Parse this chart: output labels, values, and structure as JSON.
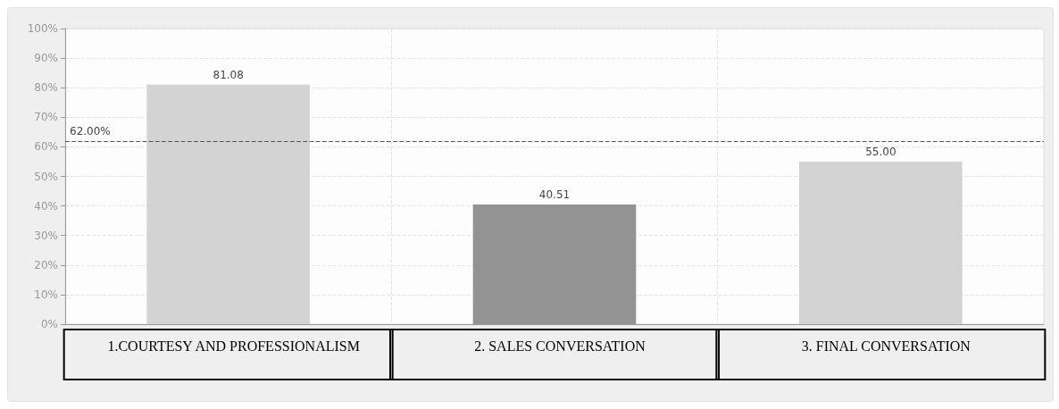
{
  "chart_data": {
    "type": "bar",
    "categories": [
      "1.COURTESY AND PROFESSIONALISM",
      "2. SALES CONVERSATION",
      "3. FINAL CONVERSATION"
    ],
    "values": [
      81.08,
      40.51,
      55.0
    ],
    "colors": [
      "#d3d3d3",
      "#939393",
      "#d3d3d3"
    ],
    "value_labels": [
      "81.08",
      "40.51",
      "55.00"
    ],
    "ylim": [
      0,
      100
    ],
    "yticks": [
      {
        "value": 0,
        "label": "0%"
      },
      {
        "value": 10,
        "label": "10%"
      },
      {
        "value": 20,
        "label": "20%"
      },
      {
        "value": 30,
        "label": "30%"
      },
      {
        "value": 40,
        "label": "40%"
      },
      {
        "value": 50,
        "label": "50%"
      },
      {
        "value": 60,
        "label": "60%"
      },
      {
        "value": 70,
        "label": "70%"
      },
      {
        "value": 80,
        "label": "80%"
      },
      {
        "value": 90,
        "label": "90%"
      },
      {
        "value": 100,
        "label": "100%"
      }
    ],
    "ref_lines": [
      {
        "axis": "y",
        "value": 62,
        "label": "62.00%",
        "color": "#555555",
        "line_style": "dashed"
      }
    ],
    "grid": true
  }
}
